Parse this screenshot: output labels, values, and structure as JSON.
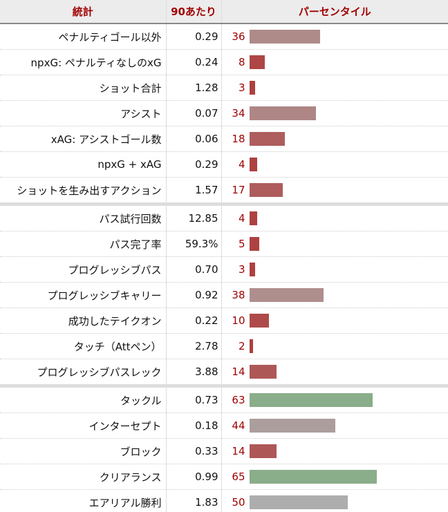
{
  "headers": {
    "stat": "統計",
    "per90": "90あたり",
    "percentile": "パーセンタイル"
  },
  "colors": {
    "header_text": "#a00000",
    "low": "#ae4646",
    "mid_low": "#ae5b5b",
    "mid": "#ae8b89",
    "average": "#acacac",
    "high": "#8aad8a"
  },
  "rows": [
    {
      "stat": "ペナルティゴール以外",
      "per90": "0.29",
      "pct": 36,
      "color": "#ae8b89"
    },
    {
      "stat": "npxG: ペナルティなしのxG",
      "per90": "0.24",
      "pct": 8,
      "color": "#ae4646"
    },
    {
      "stat": "ショット合計",
      "per90": "1.28",
      "pct": 3,
      "color": "#ae4040"
    },
    {
      "stat": "アシスト",
      "per90": "0.07",
      "pct": 34,
      "color": "#ae8685"
    },
    {
      "stat": "xAG: アシストゴール数",
      "per90": "0.06",
      "pct": 18,
      "color": "#ae5d5d"
    },
    {
      "stat": "npxG + xAG",
      "per90": "0.29",
      "pct": 4,
      "color": "#ae4141"
    },
    {
      "stat": "ショットを生み出すアクション",
      "per90": "1.57",
      "pct": 17,
      "color": "#ae5c5c"
    },
    {
      "stat": "パス試行回数",
      "per90": "12.85",
      "pct": 4,
      "color": "#ae4141",
      "sep": true
    },
    {
      "stat": "パス完了率",
      "per90": "59.3%",
      "pct": 5,
      "color": "#ae4242"
    },
    {
      "stat": "プログレッシブパス",
      "per90": "0.70",
      "pct": 3,
      "color": "#ae4040"
    },
    {
      "stat": "プログレッシブキャリー",
      "per90": "0.92",
      "pct": 38,
      "color": "#ae8f8d"
    },
    {
      "stat": "成功したテイクオン",
      "per90": "0.22",
      "pct": 10,
      "color": "#ae4a4a"
    },
    {
      "stat": "タッチ（Attペン）",
      "per90": "2.78",
      "pct": 2,
      "color": "#ae3f3f"
    },
    {
      "stat": "プログレッシブパスレック",
      "per90": "3.88",
      "pct": 14,
      "color": "#ae5757"
    },
    {
      "stat": "タックル",
      "per90": "0.73",
      "pct": 63,
      "color": "#8aad8a",
      "sep": true
    },
    {
      "stat": "インターセプト",
      "per90": "0.18",
      "pct": 44,
      "color": "#ac9e9d"
    },
    {
      "stat": "ブロック",
      "per90": "0.33",
      "pct": 14,
      "color": "#ae5757"
    },
    {
      "stat": "クリアランス",
      "per90": "0.99",
      "pct": 65,
      "color": "#8aad8a"
    },
    {
      "stat": "エアリアル勝利",
      "per90": "1.83",
      "pct": 50,
      "color": "#adadad"
    }
  ]
}
